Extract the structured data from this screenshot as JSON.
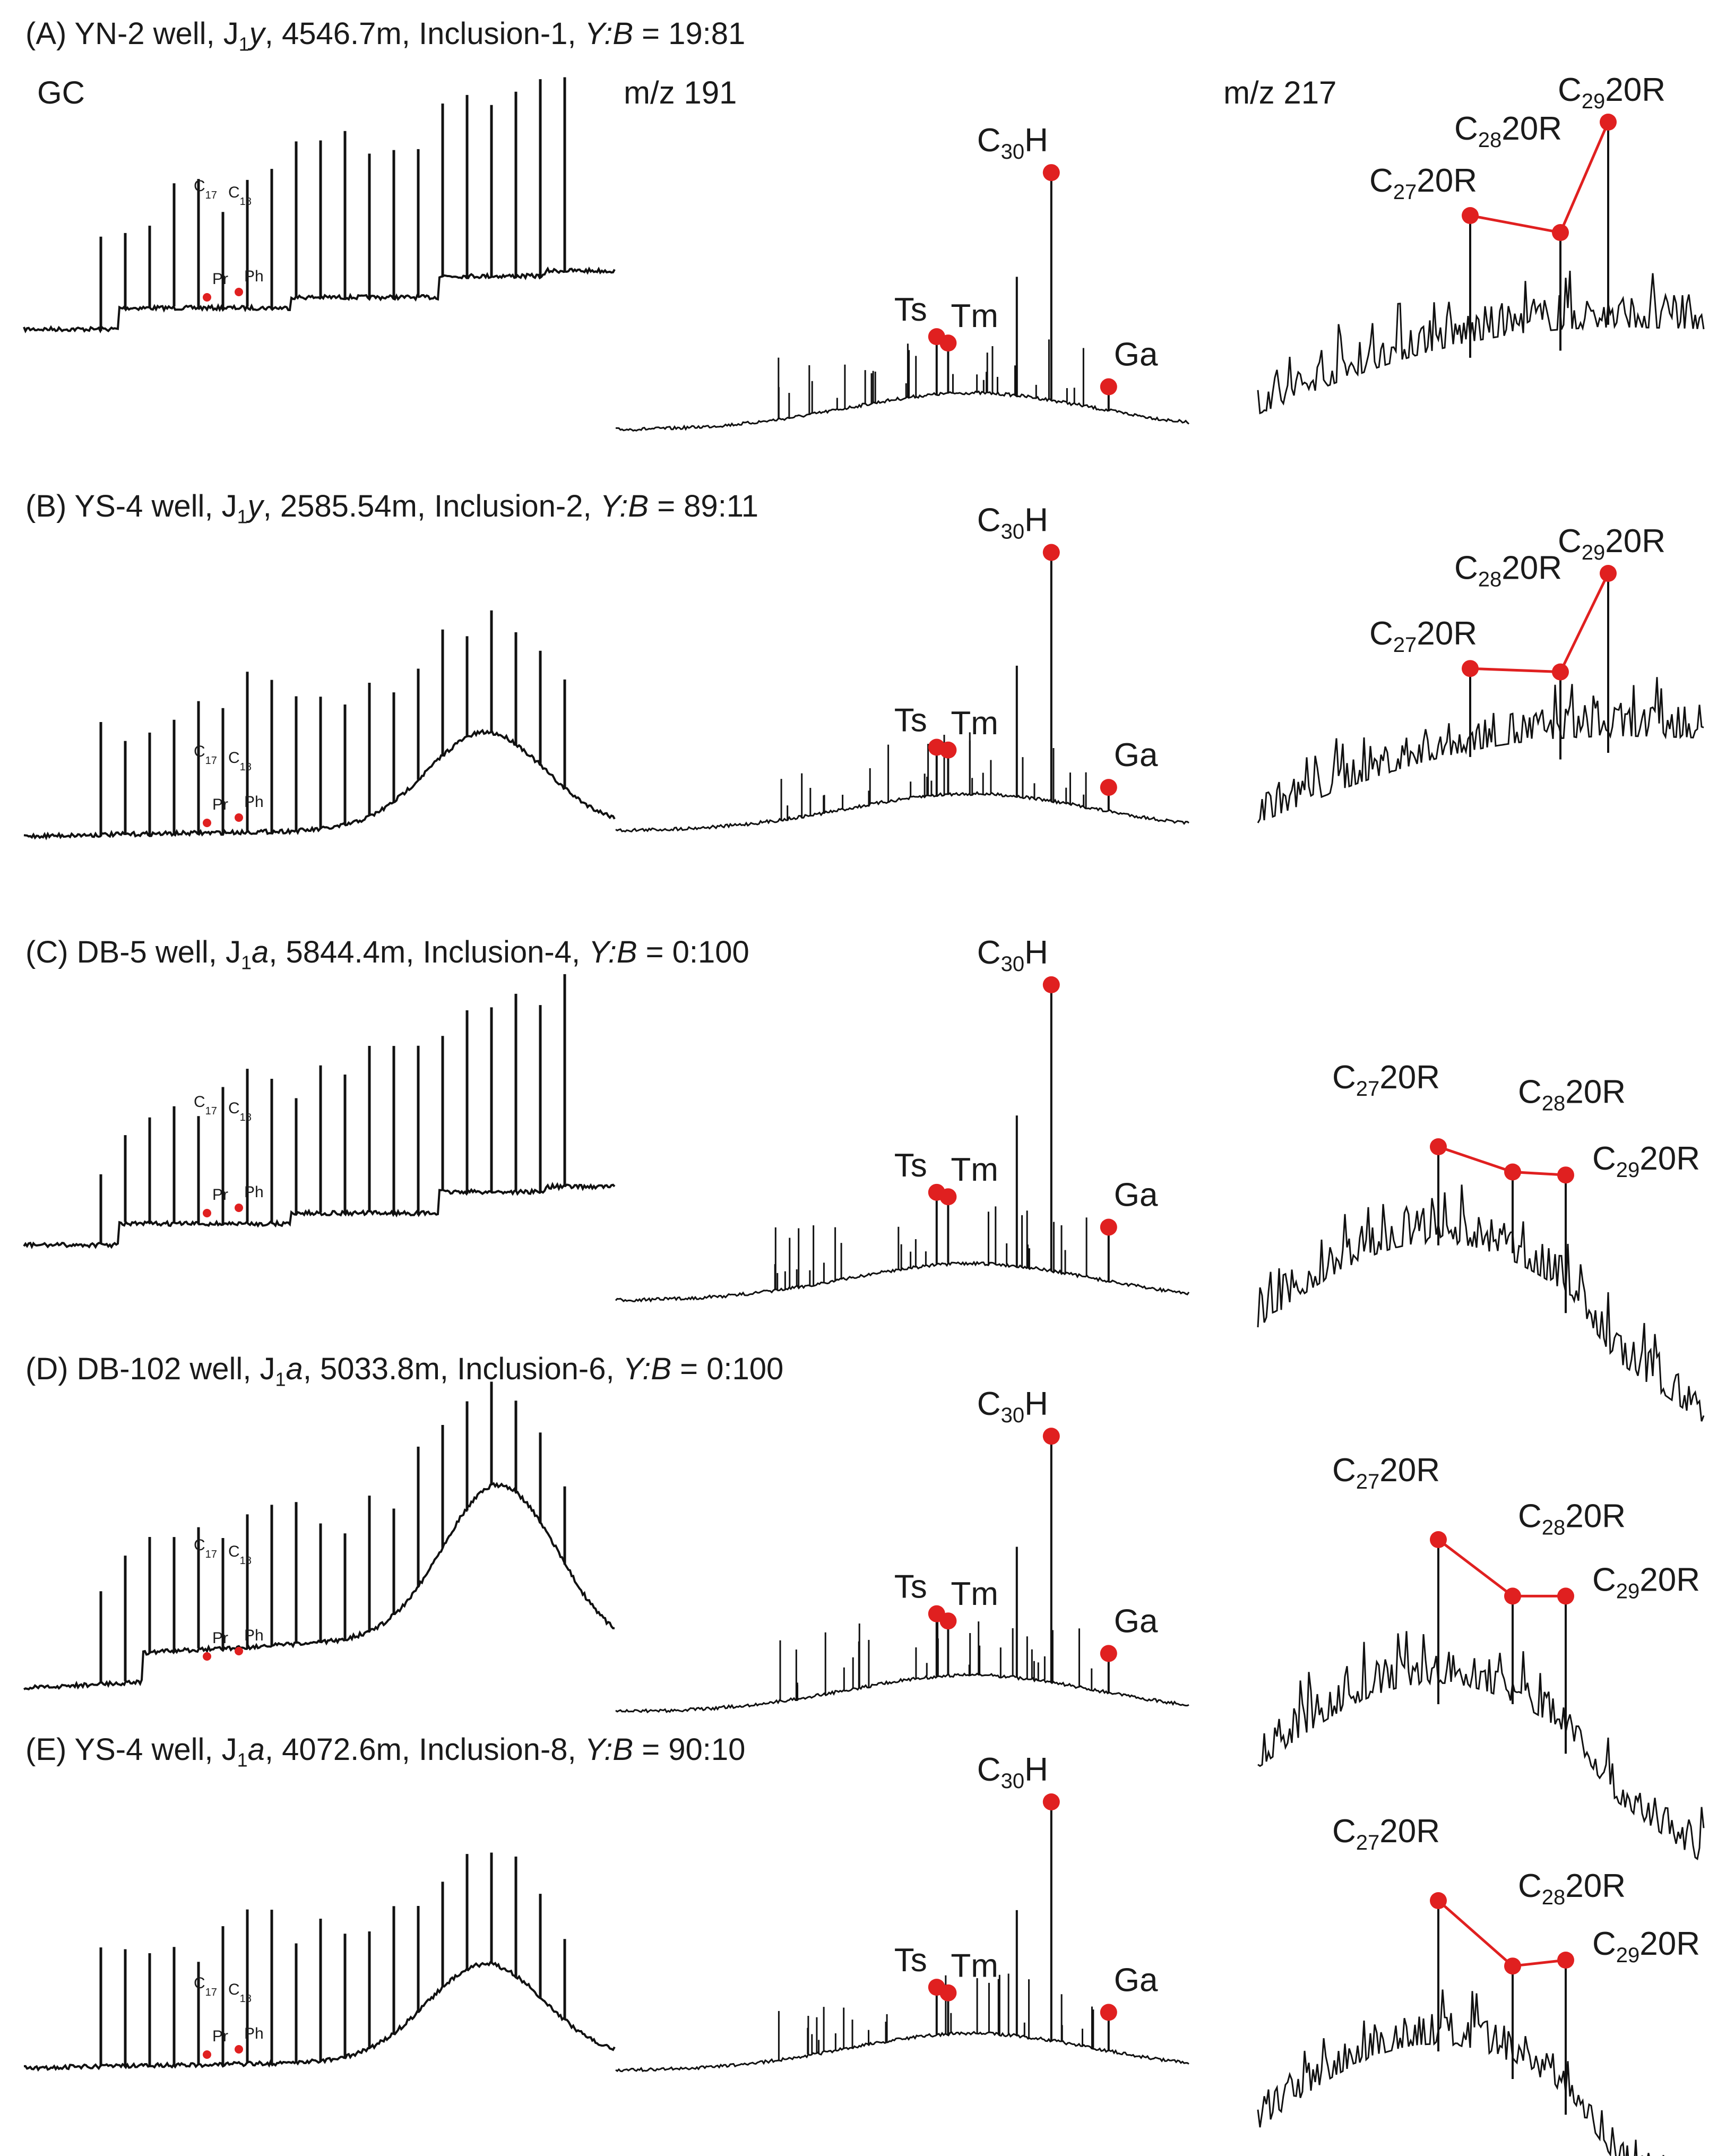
{
  "chart_data": {
    "type": "chromatogram-panels",
    "column_headers": [
      "GC",
      "m/z 191",
      "m/z 217"
    ],
    "labels": {
      "gc": {
        "c17": "C",
        "c17_sub": "17",
        "c18": "C",
        "c18_sub": "18",
        "pr": "Pr",
        "ph": "Ph"
      },
      "m191": {
        "c30h_main": "C",
        "c30h_sub": "30",
        "c30h_tail": "H",
        "ts": "Ts",
        "tm": "Tm",
        "ga": "Ga"
      },
      "m217": {
        "c27_main": "C",
        "c27_sub": "27",
        "c27_tail": "20R",
        "c28_main": "C",
        "c28_sub": "28",
        "c28_tail": "20R",
        "c29_main": "C",
        "c29_sub": "29",
        "c29_tail": "20R"
      }
    },
    "series_colors": {
      "trace": "#111111",
      "marker": "#e02020",
      "connector": "#e02020"
    },
    "panels": [
      {
        "id": "A",
        "title_prefix": "(A) YN-2 well, J",
        "formation_sub": "1",
        "formation_letter": "y",
        "title_mid": ", 4546.7m, Inclusion-1, ",
        "ratio_label": "Y:B",
        "ratio_value": " = 19:81",
        "sterane_relative": {
          "C27_20R": 0.56,
          "C28_20R": 0.48,
          "C29_20R": 1.0
        },
        "terpane_relative": {
          "Ts": 0.22,
          "Tm": 0.18,
          "C30H": 1.0,
          "Ga": 0.06
        }
      },
      {
        "id": "B",
        "title_prefix": "(B) YS-4 well, J",
        "formation_sub": "1",
        "formation_letter": "y",
        "title_mid": ", 2585.54m, Inclusion-2, ",
        "ratio_label": "Y:B",
        "ratio_value": " = 89:11",
        "sterane_relative": {
          "C27_20R": 0.44,
          "C28_20R": 0.42,
          "C29_20R": 1.0
        },
        "terpane_relative": {
          "Ts": 0.16,
          "Tm": 0.14,
          "C30H": 1.0,
          "Ga": 0.05
        }
      },
      {
        "id": "C",
        "title_prefix": "(C) DB-5 well, J",
        "formation_sub": "1",
        "formation_letter": "a",
        "title_mid": ", 5844.4m, Inclusion-4, ",
        "ratio_label": "Y:B",
        "ratio_value": " = 0:100",
        "sterane_relative": {
          "C27_20R": 1.0,
          "C28_20R": 0.75,
          "C29_20R": 0.72
        },
        "terpane_relative": {
          "Ts": 0.22,
          "Tm": 0.2,
          "C30H": 1.0,
          "Ga": 0.16
        }
      },
      {
        "id": "D",
        "title_prefix": "(D) DB-102 well, J",
        "formation_sub": "1",
        "formation_letter": "a",
        "title_mid": ", 5033.8m, Inclusion-6, ",
        "ratio_label": "Y:B",
        "ratio_value": " = 0:100",
        "sterane_relative": {
          "C27_20R": 1.0,
          "C28_20R": 0.62,
          "C29_20R": 0.62
        },
        "terpane_relative": {
          "Ts": 0.22,
          "Tm": 0.18,
          "C30H": 1.0,
          "Ga": 0.12
        }
      },
      {
        "id": "E",
        "title_prefix": "(E) YS-4 well, J",
        "formation_sub": "1",
        "formation_letter": "a",
        "title_mid": ", 4072.6m, Inclusion-8, ",
        "ratio_label": "Y:B",
        "ratio_value": " = 90:10",
        "sterane_relative": {
          "C27_20R": 1.0,
          "C28_20R": 0.56,
          "C29_20R": 0.6
        },
        "terpane_relative": {
          "Ts": 0.16,
          "Tm": 0.14,
          "C30H": 1.0,
          "Ga": 0.12
        }
      }
    ]
  }
}
